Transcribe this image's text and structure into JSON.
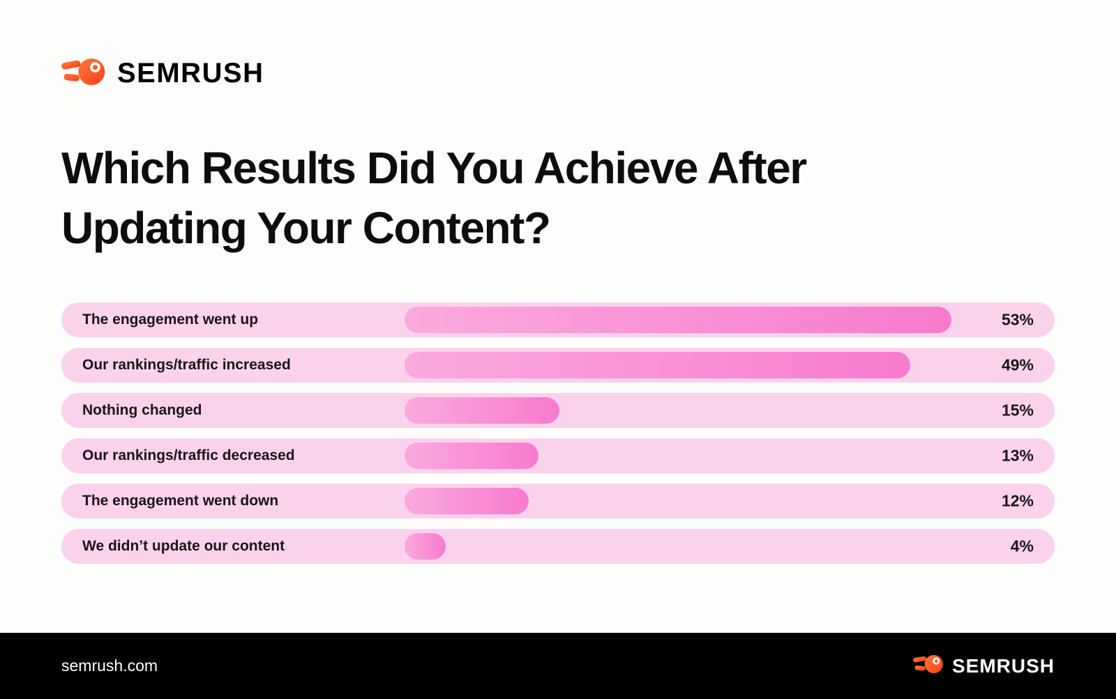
{
  "header": {
    "logo_text": "SEMRUSH"
  },
  "title_lines": [
    "Which Results Did You Achieve After",
    "Updating Your Content?"
  ],
  "chart_data": {
    "type": "bar",
    "orientation": "horizontal",
    "title": "Which Results Did You Achieve After Updating Your Content?",
    "categories": [
      "The engagement went up",
      "Our rankings/traffic increased",
      "Nothing changed",
      "Our rankings/traffic decreased",
      "The engagement went down",
      "We didn’t update our content"
    ],
    "values": [
      53,
      49,
      15,
      13,
      12,
      4
    ],
    "value_labels": [
      "53%",
      "49%",
      "15%",
      "13%",
      "12%",
      "4%"
    ],
    "unit": "%",
    "xlim": [
      0,
      100
    ],
    "grid": false,
    "legend": false,
    "colors": {
      "row_background": "#FBD2EC",
      "bar_gradient_start": "#FAAADD",
      "bar_gradient_end": "#F87ACE",
      "label_text": "#171717",
      "brand_orange": "#FF5C2B",
      "footer_background": "#000000"
    }
  },
  "footer": {
    "site_label": "semrush.com",
    "logo_text": "SEMRUSH"
  }
}
